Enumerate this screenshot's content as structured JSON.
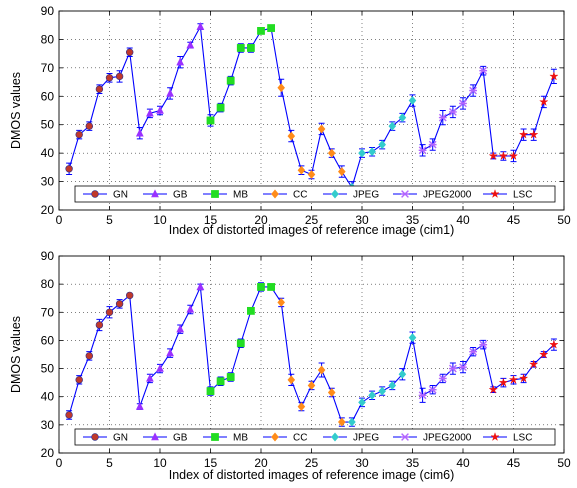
{
  "chart_data": [
    {
      "type": "line",
      "xlabel": "Index of distorted images of reference image (cim1)",
      "ylabel": "DMOS values",
      "xlim": [
        0,
        50
      ],
      "ylim": [
        20,
        90
      ],
      "xticks": [
        0,
        5,
        10,
        15,
        20,
        25,
        30,
        35,
        40,
        45,
        50
      ],
      "yticks": [
        20,
        30,
        40,
        50,
        60,
        70,
        80,
        90
      ],
      "grid": true,
      "legend_position": "bottom",
      "line_color": "#0000ff",
      "series": [
        {
          "name": "GN",
          "marker": "circle",
          "color": "#c0392b",
          "x": [
            1,
            2,
            3,
            4,
            5,
            6,
            7
          ],
          "y": [
            34.5,
            46.5,
            49.5,
            62.5,
            66.5,
            67,
            75.5
          ],
          "err": [
            2,
            1.5,
            1.5,
            1.5,
            1.5,
            2,
            1.5
          ]
        },
        {
          "name": "GB",
          "marker": "triangle",
          "color": "#9b30ff",
          "x": [
            8,
            9,
            10,
            11,
            12,
            13,
            14
          ],
          "y": [
            47,
            54,
            55,
            61,
            72,
            78,
            84.5
          ],
          "err": [
            2,
            1.5,
            1.5,
            2,
            2,
            1,
            1
          ]
        },
        {
          "name": "MB",
          "marker": "square",
          "color": "#22dd22",
          "x": [
            15,
            16,
            17,
            18,
            19,
            20,
            21
          ],
          "y": [
            51.5,
            56,
            65.5,
            77,
            77,
            83,
            84
          ],
          "err": [
            2,
            1.5,
            1.5,
            1.5,
            1.5,
            1,
            1
          ]
        },
        {
          "name": "CC",
          "marker": "diamond",
          "color": "#ff8c1a",
          "x": [
            22,
            23,
            24,
            25,
            26,
            27,
            28
          ],
          "y": [
            63,
            46,
            34,
            32.5,
            48.5,
            40,
            33.5
          ],
          "err": [
            3,
            2,
            1.5,
            1.5,
            2,
            1.5,
            2
          ]
        },
        {
          "name": "JPEG",
          "marker": "diamond",
          "color": "#33cccc",
          "x": [
            29,
            30,
            31,
            32,
            33,
            34,
            35
          ],
          "y": [
            28,
            40,
            40.5,
            43,
            49.5,
            52.5,
            58.5
          ],
          "err": [
            2,
            1.5,
            1.5,
            1.5,
            1.5,
            1.5,
            2
          ]
        },
        {
          "name": "JPEG2000",
          "marker": "cross",
          "color": "#b266ff",
          "x": [
            36,
            37,
            38,
            39,
            40,
            41,
            42
          ],
          "y": [
            41,
            43,
            52.5,
            54.5,
            57.5,
            62,
            69
          ],
          "err": [
            2,
            2,
            2.5,
            2,
            2,
            2,
            1.5
          ]
        },
        {
          "name": "LSC",
          "marker": "star",
          "color": "#ee1111",
          "x": [
            43,
            44,
            45,
            46,
            47,
            48,
            49
          ],
          "y": [
            39,
            39,
            39,
            46.5,
            46.5,
            58,
            67
          ],
          "err": [
            1,
            1.5,
            2,
            2,
            2,
            2,
            2.5
          ]
        }
      ]
    },
    {
      "type": "line",
      "xlabel": "Index of distorted images of reference image (cim6)",
      "ylabel": "DMOS values",
      "xlim": [
        0,
        50
      ],
      "ylim": [
        20,
        90
      ],
      "xticks": [
        0,
        5,
        10,
        15,
        20,
        25,
        30,
        35,
        40,
        45,
        50
      ],
      "yticks": [
        20,
        30,
        40,
        50,
        60,
        70,
        80,
        90
      ],
      "grid": true,
      "legend_position": "bottom",
      "line_color": "#0000ff",
      "series": [
        {
          "name": "GN",
          "marker": "circle",
          "color": "#c0392b",
          "x": [
            1,
            2,
            3,
            4,
            5,
            6,
            7
          ],
          "y": [
            33.5,
            46,
            54.5,
            65.5,
            70,
            73,
            76
          ],
          "err": [
            1.5,
            1.5,
            1.5,
            2,
            2,
            1.5,
            0.5
          ]
        },
        {
          "name": "GB",
          "marker": "triangle",
          "color": "#9b30ff",
          "x": [
            8,
            9,
            10,
            11,
            12,
            13,
            14
          ],
          "y": [
            36.5,
            46.5,
            50,
            55.5,
            64,
            71,
            79
          ],
          "err": [
            1,
            1.5,
            1.5,
            1.5,
            1.5,
            1.5,
            1
          ]
        },
        {
          "name": "MB",
          "marker": "square",
          "color": "#22dd22",
          "x": [
            15,
            16,
            17,
            18,
            19,
            20,
            21
          ],
          "y": [
            42,
            45.5,
            47,
            59,
            70.5,
            79,
            79
          ],
          "err": [
            1.5,
            1.5,
            1.5,
            1.5,
            1,
            1.5,
            1
          ]
        },
        {
          "name": "CC",
          "marker": "diamond",
          "color": "#ff8c1a",
          "x": [
            22,
            23,
            24,
            25,
            26,
            27,
            28
          ],
          "y": [
            73.5,
            46,
            36.5,
            44,
            49.5,
            41.5,
            31
          ],
          "err": [
            1.5,
            2,
            1.5,
            1.5,
            2.5,
            1.5,
            1.5
          ]
        },
        {
          "name": "JPEG",
          "marker": "diamond",
          "color": "#33cccc",
          "x": [
            29,
            30,
            31,
            32,
            33,
            34,
            35
          ],
          "y": [
            31,
            38,
            40.5,
            42,
            44,
            48,
            61
          ],
          "err": [
            1.5,
            1.5,
            1.5,
            1.5,
            1.5,
            2,
            2
          ]
        },
        {
          "name": "JPEG2000",
          "marker": "cross",
          "color": "#b266ff",
          "x": [
            36,
            37,
            38,
            39,
            40,
            41,
            42
          ],
          "y": [
            40.5,
            42.5,
            46.5,
            50,
            50.5,
            56,
            58.5
          ],
          "err": [
            2.5,
            1.5,
            1.5,
            2,
            2,
            1.5,
            1.5
          ]
        },
        {
          "name": "LSC",
          "marker": "star",
          "color": "#ee1111",
          "x": [
            43,
            44,
            45,
            46,
            47,
            48,
            49
          ],
          "y": [
            42.5,
            45,
            46,
            46.5,
            51.5,
            55,
            58.5
          ],
          "err": [
            1,
            1.5,
            1.5,
            1.5,
            1,
            1,
            2
          ]
        }
      ]
    }
  ]
}
